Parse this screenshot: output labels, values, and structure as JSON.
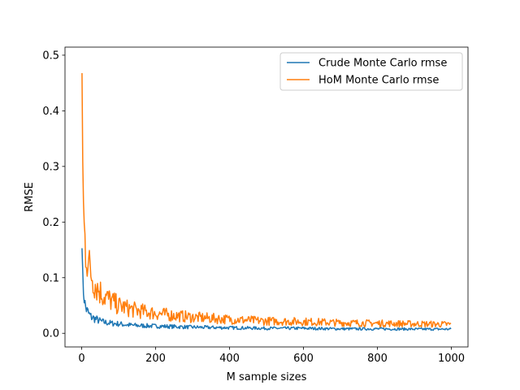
{
  "chart_data": {
    "type": "line",
    "title": "",
    "xlabel": "M sample sizes",
    "ylabel": "RMSE",
    "xlim": [
      -45,
      1045
    ],
    "ylim": [
      -0.0245,
      0.5145
    ],
    "xticks": [
      0,
      200,
      400,
      600,
      800,
      1000
    ],
    "xtick_labels": [
      "0",
      "200",
      "400",
      "600",
      "800",
      "1000"
    ],
    "yticks": [
      0.0,
      0.1,
      0.2,
      0.3,
      0.4,
      0.5
    ],
    "ytick_labels": [
      "0.0",
      "0.1",
      "0.2",
      "0.3",
      "0.4",
      "0.5"
    ],
    "grid": false,
    "legend_position": "upper right",
    "series": [
      {
        "name": "Crude Monte Carlo rmse",
        "color": "#1f77b4",
        "x": [
          1,
          2,
          3,
          5,
          7,
          10,
          15,
          20,
          25,
          30,
          40,
          50,
          60,
          80,
          100,
          125,
          150,
          200,
          250,
          300,
          400,
          500,
          600,
          700,
          800,
          900,
          1000
        ],
        "values": [
          0.18,
          0.13,
          0.1,
          0.075,
          0.06,
          0.048,
          0.04,
          0.034,
          0.03,
          0.028,
          0.025,
          0.022,
          0.02,
          0.018,
          0.017,
          0.015,
          0.014,
          0.013,
          0.012,
          0.011,
          0.01,
          0.009,
          0.009,
          0.008,
          0.008,
          0.0075,
          0.0075
        ]
      },
      {
        "name": "HoM Monte Carlo rmse",
        "color": "#ff7f0e",
        "x": [
          1,
          2,
          3,
          4,
          5,
          7,
          10,
          15,
          20,
          25,
          30,
          40,
          50,
          60,
          80,
          100,
          125,
          150,
          200,
          250,
          300,
          400,
          500,
          600,
          700,
          800,
          900,
          1000
        ],
        "values": [
          0.495,
          0.38,
          0.3,
          0.26,
          0.23,
          0.19,
          0.16,
          0.14,
          0.12,
          0.11,
          0.1,
          0.085,
          0.075,
          0.068,
          0.058,
          0.05,
          0.045,
          0.041,
          0.036,
          0.032,
          0.029,
          0.025,
          0.022,
          0.021,
          0.019,
          0.018,
          0.017,
          0.016
        ]
      }
    ]
  }
}
